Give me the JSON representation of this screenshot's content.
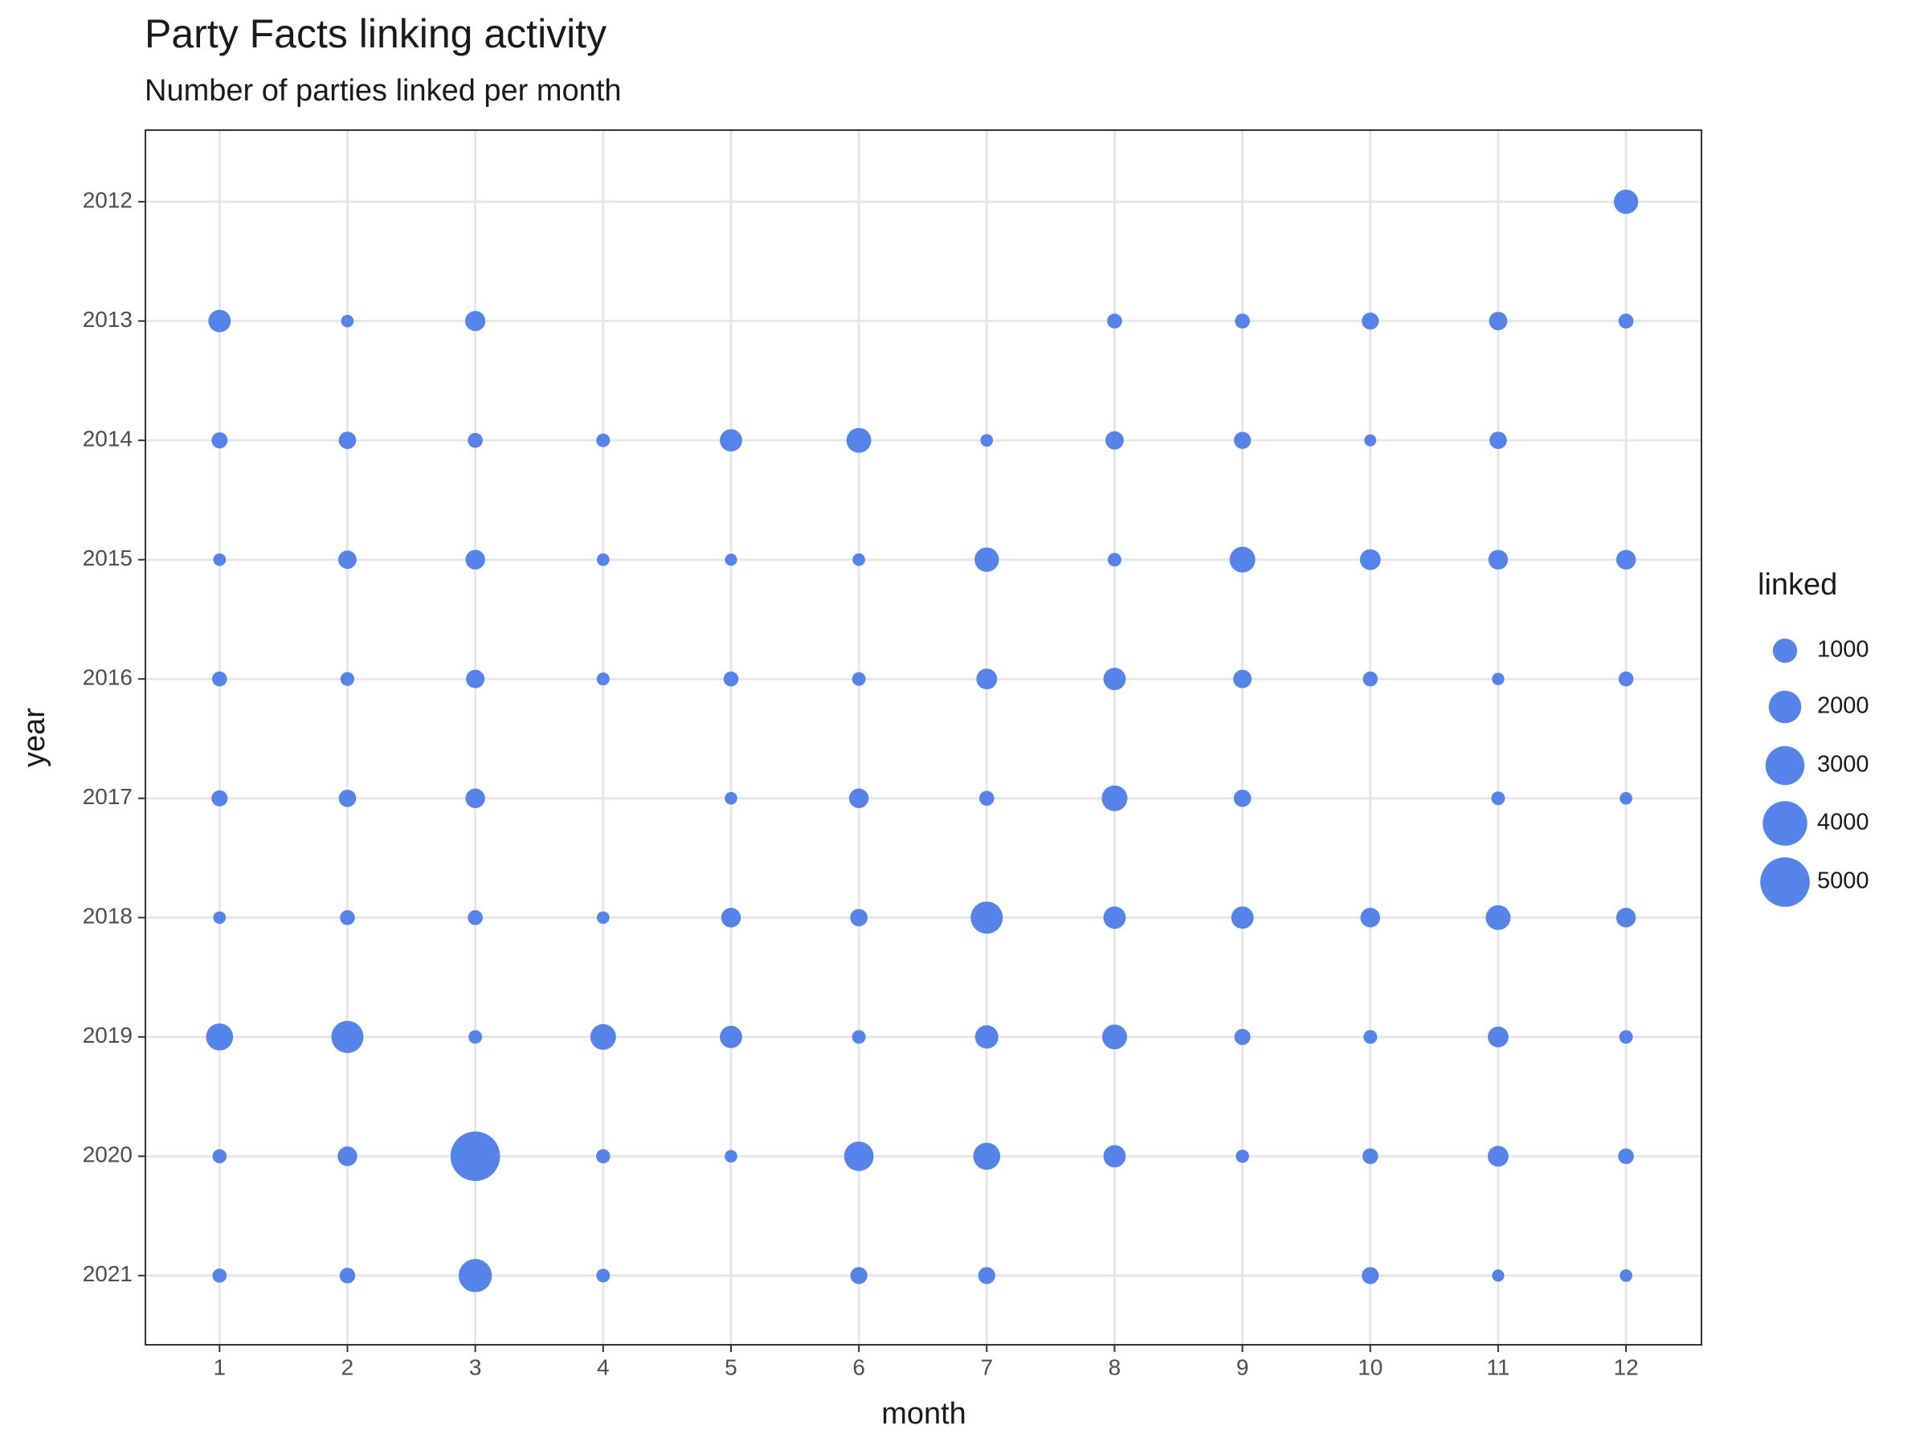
{
  "chart_data": {
    "type": "bubble",
    "title": "Party Facts linking activity",
    "subtitle": "Number of parties linked per month",
    "x_label": "month",
    "y_label": "year",
    "color": "#5683e8",
    "grid": true,
    "xlim": [
      0.42,
      12.59
    ],
    "xticks": [
      1,
      2,
      3,
      4,
      5,
      6,
      7,
      8,
      9,
      10,
      11,
      12
    ],
    "ylim": [
      2021.58,
      2011.4
    ],
    "yticks": [
      2012,
      2013,
      2014,
      2015,
      2016,
      2017,
      2018,
      2019,
      2020,
      2021
    ],
    "x": [
      12,
      1,
      2,
      3,
      8,
      9,
      10,
      11,
      12,
      1,
      2,
      3,
      4,
      5,
      6,
      7,
      8,
      9,
      10,
      11,
      1,
      2,
      3,
      4,
      5,
      6,
      7,
      8,
      9,
      10,
      11,
      12,
      1,
      2,
      3,
      4,
      5,
      6,
      7,
      8,
      9,
      10,
      11,
      12,
      1,
      2,
      3,
      5,
      6,
      7,
      8,
      9,
      11,
      12,
      1,
      2,
      3,
      4,
      5,
      6,
      7,
      8,
      9,
      10,
      11,
      12,
      1,
      2,
      3,
      4,
      5,
      6,
      7,
      8,
      9,
      10,
      11,
      12,
      1,
      2,
      3,
      4,
      5,
      6,
      7,
      8,
      9,
      10,
      11,
      12,
      1,
      2,
      3,
      4,
      6,
      7,
      10,
      11,
      12
    ],
    "y": [
      2012,
      2013,
      2013,
      2013,
      2013,
      2013,
      2013,
      2013,
      2013,
      2014,
      2014,
      2014,
      2014,
      2014,
      2014,
      2014,
      2014,
      2014,
      2014,
      2014,
      2015,
      2015,
      2015,
      2015,
      2015,
      2015,
      2015,
      2015,
      2015,
      2015,
      2015,
      2015,
      2016,
      2016,
      2016,
      2016,
      2016,
      2016,
      2016,
      2016,
      2016,
      2016,
      2016,
      2016,
      2017,
      2017,
      2017,
      2017,
      2017,
      2017,
      2017,
      2017,
      2017,
      2017,
      2018,
      2018,
      2018,
      2018,
      2018,
      2018,
      2018,
      2018,
      2018,
      2018,
      2018,
      2018,
      2019,
      2019,
      2019,
      2019,
      2019,
      2019,
      2019,
      2019,
      2019,
      2019,
      2019,
      2019,
      2020,
      2020,
      2020,
      2020,
      2020,
      2020,
      2020,
      2020,
      2020,
      2020,
      2020,
      2020,
      2021,
      2021,
      2021,
      2021,
      2021,
      2021,
      2021,
      2021,
      2021
    ],
    "size": [
      1000,
      800,
      60,
      600,
      200,
      200,
      350,
      450,
      200,
      280,
      370,
      200,
      120,
      800,
      1050,
      60,
      450,
      350,
      30,
      370,
      60,
      450,
      550,
      60,
      40,
      60,
      1000,
      120,
      1150,
      650,
      550,
      550,
      200,
      130,
      450,
      80,
      200,
      120,
      650,
      800,
      450,
      200,
      50,
      200,
      280,
      370,
      550,
      60,
      550,
      200,
      1150,
      370,
      120,
      60,
      60,
      200,
      200,
      60,
      550,
      370,
      1950,
      800,
      800,
      550,
      1050,
      550,
      1300,
      1950,
      120,
      1150,
      800,
      120,
      900,
      1050,
      280,
      130,
      650,
      120,
      150,
      550,
      5000,
      150,
      60,
      1600,
      1300,
      800,
      100,
      250,
      650,
      250,
      150,
      250,
      2100,
      120,
      350,
      350,
      350,
      40,
      60
    ],
    "size_legend": {
      "title": "linked",
      "values": [
        1000,
        2000,
        3000,
        4000,
        5000
      ]
    }
  }
}
